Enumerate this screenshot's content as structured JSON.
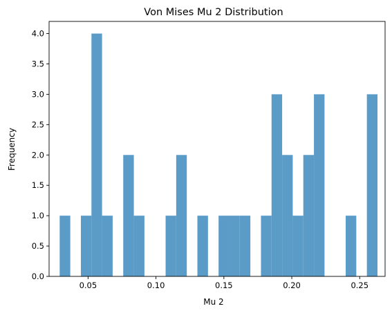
{
  "chart_data": {
    "type": "bar",
    "title": "Von Mises Mu 2 Distribution",
    "xlabel": "Mu 2",
    "ylabel": "Frequency",
    "xlim": [
      0.0213,
      0.2687
    ],
    "ylim": [
      0,
      4.2
    ],
    "bin_width": 0.0078,
    "bin_start": 0.0291,
    "counts": [
      1,
      0,
      1,
      4,
      1,
      0,
      2,
      1,
      0,
      0,
      1,
      2,
      0,
      1,
      0,
      1,
      1,
      1,
      0,
      1,
      3,
      2,
      1,
      2,
      3,
      0,
      0,
      1,
      0,
      3
    ],
    "x_ticks": [
      {
        "value": 0.05,
        "label": "0.05"
      },
      {
        "value": 0.1,
        "label": "0.10"
      },
      {
        "value": 0.15,
        "label": "0.15"
      },
      {
        "value": 0.2,
        "label": "0.20"
      },
      {
        "value": 0.25,
        "label": "0.25"
      }
    ],
    "y_ticks": [
      {
        "value": 0.0,
        "label": "0.0"
      },
      {
        "value": 0.5,
        "label": "0.5"
      },
      {
        "value": 1.0,
        "label": "1.0"
      },
      {
        "value": 1.5,
        "label": "1.5"
      },
      {
        "value": 2.0,
        "label": "2.0"
      },
      {
        "value": 2.5,
        "label": "2.5"
      },
      {
        "value": 3.0,
        "label": "3.0"
      },
      {
        "value": 3.5,
        "label": "3.5"
      },
      {
        "value": 4.0,
        "label": "4.0"
      }
    ],
    "bar_color": "#5a9bc8",
    "grid": false,
    "legend": false
  }
}
